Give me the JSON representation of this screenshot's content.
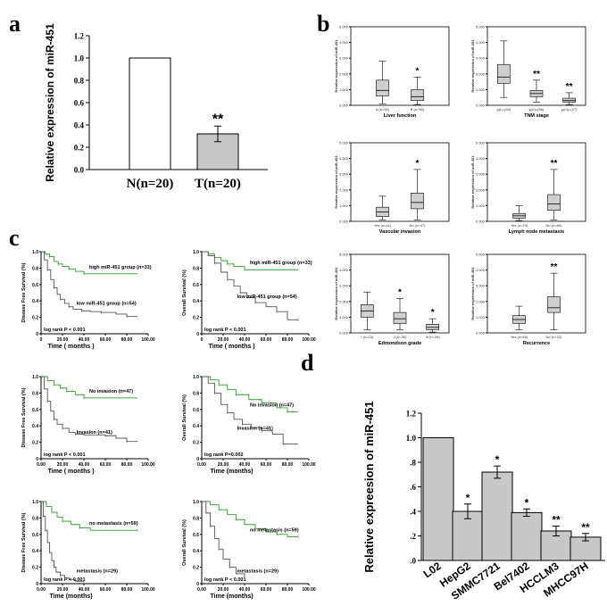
{
  "panel_labels": {
    "a": "a",
    "b": "b",
    "c": "c",
    "d": "d"
  },
  "chart_data": [
    {
      "id": "a",
      "type": "bar",
      "categories": [
        "N(n=20)",
        "T(n=20)"
      ],
      "values": [
        1.0,
        0.32
      ],
      "errors": [
        0,
        0.07
      ],
      "annotations": [
        "",
        "**"
      ],
      "ylabel": "Relative expression of miR-451",
      "ylim": [
        0,
        1.2
      ],
      "yticks": [
        "0.0",
        "0.2",
        "0.4",
        "0.6",
        "0.8",
        "1.0",
        "1.2"
      ],
      "colors": [
        "#ffffff",
        "#c8c8c8"
      ]
    },
    {
      "id": "b",
      "type": "box",
      "ylabel": "Relative expression of miR-451",
      "ylim": [
        0,
        5
      ],
      "yticks": [
        "0.000",
        "1.000",
        "2.000",
        "3.000",
        "4.000",
        "5.000"
      ],
      "subplots": [
        {
          "xlabel": "Liver function",
          "groups": [
            "A (n=68)",
            "B (n=50)"
          ],
          "boxes": [
            [
              0.1,
              0.6,
              0.95,
              1.6,
              2.8
            ],
            [
              0.05,
              0.3,
              0.55,
              1.0,
              1.8
            ]
          ],
          "marks": [
            "",
            "*"
          ]
        },
        {
          "xlabel": "TNM stage",
          "groups": [
            "p(I)=(35)",
            "p(II)=(56)",
            "p(III)=(27)"
          ],
          "boxes": [
            [
              0.5,
              1.4,
              1.8,
              2.6,
              4.1
            ],
            [
              0.2,
              0.55,
              0.75,
              0.95,
              1.6
            ],
            [
              0.05,
              0.2,
              0.3,
              0.45,
              0.8
            ]
          ],
          "marks": [
            "",
            "**",
            "**"
          ]
        },
        {
          "xlabel": "Vascular invasion",
          "groups": [
            "Yes (n=41)",
            "No (n=47)"
          ],
          "boxes": [
            [
              0.1,
              0.3,
              0.6,
              0.9,
              1.6
            ],
            [
              0.1,
              0.8,
              1.2,
              1.8,
              3.3
            ]
          ],
          "marks": [
            "",
            "*"
          ]
        },
        {
          "xlabel": "Lymph node metastasis",
          "groups": [
            "Yes (n=29)",
            "No (n=60)"
          ],
          "boxes": [
            [
              0.05,
              0.2,
              0.35,
              0.5,
              1.0
            ],
            [
              0.1,
              0.7,
              1.1,
              1.7,
              3.3
            ]
          ],
          "marks": [
            "",
            "**"
          ]
        },
        {
          "xlabel": "Edmondson grade",
          "groups": [
            "I (n=23)",
            "II (n=39)",
            "III (n=26)"
          ],
          "boxes": [
            [
              0.2,
              1.0,
              1.4,
              1.8,
              2.6
            ],
            [
              0.2,
              0.6,
              0.9,
              1.3,
              2.2
            ],
            [
              0.05,
              0.2,
              0.35,
              0.55,
              0.9
            ]
          ],
          "marks": [
            "",
            "*",
            "*"
          ]
        },
        {
          "xlabel": "Recurrence",
          "groups": [
            "Yes (n=46)",
            "No (n=32)"
          ],
          "boxes": [
            [
              0.2,
              0.6,
              0.85,
              1.1,
              1.7
            ],
            [
              0.2,
              1.3,
              1.6,
              2.3,
              3.8
            ]
          ],
          "marks": [
            "",
            "**"
          ]
        }
      ]
    },
    {
      "id": "c",
      "type": "line",
      "ylim": [
        0,
        1.0
      ],
      "yticks": [
        "0",
        "0.2",
        "0.4",
        "0.6",
        "0.8",
        "1.0"
      ],
      "xticks_int": [
        "0",
        "20.00",
        "40.00",
        "60.00",
        "80.00",
        "100.00"
      ],
      "xticks_dec": [
        "0.00",
        "20.00",
        "40.00",
        "60.00",
        "80.00",
        "100.00"
      ],
      "subplots": [
        {
          "ylabel": "Disease Free Survival (%)",
          "xlabel": "Time ( months )",
          "pvalue": "log rank P < 0.001",
          "series": [
            {
              "name": "high miR-451 group (n=33)",
              "color": "#2f9d2f",
              "x": [
                0,
                4,
                8,
                12,
                16,
                20,
                26,
                32,
                40,
                90
              ],
              "y": [
                1,
                0.97,
                0.94,
                0.88,
                0.85,
                0.82,
                0.79,
                0.76,
                0.73,
                0.73
              ]
            },
            {
              "name": "low miR-451 group (n=54)",
              "color": "#555555",
              "x": [
                0,
                3,
                6,
                9,
                12,
                15,
                18,
                22,
                26,
                30,
                38,
                46,
                56,
                70,
                80,
                90
              ],
              "y": [
                1,
                0.9,
                0.78,
                0.66,
                0.56,
                0.48,
                0.42,
                0.37,
                0.33,
                0.3,
                0.28,
                0.27,
                0.26,
                0.24,
                0.21,
                0.21
              ]
            }
          ]
        },
        {
          "ylabel": "Overall Survival (%)",
          "xlabel": "Time ( months )",
          "pvalue": "log rank P < 0.001",
          "series": [
            {
              "name": "high miR-451 group (n=33)",
              "color": "#2f9d2f",
              "x": [
                0,
                6,
                12,
                18,
                24,
                30,
                40,
                90
              ],
              "y": [
                1,
                0.97,
                0.93,
                0.89,
                0.85,
                0.82,
                0.78,
                0.78
              ]
            },
            {
              "name": "low miR-451 group (n=54)",
              "color": "#555555",
              "x": [
                0,
                6,
                12,
                18,
                24,
                30,
                36,
                42,
                50,
                60,
                70,
                80,
                90
              ],
              "y": [
                1,
                0.95,
                0.86,
                0.75,
                0.66,
                0.58,
                0.5,
                0.44,
                0.38,
                0.33,
                0.27,
                0.17,
                0.17
              ]
            }
          ]
        },
        {
          "ylabel": "Disease Free Survival (%)",
          "xlabel": "Time ( months )",
          "pvalue": "log rank P < 0.001",
          "series": [
            {
              "name": "No invasion (n=47)",
              "color": "#2f9d2f",
              "x": [
                0,
                6,
                12,
                18,
                24,
                32,
                40,
                90
              ],
              "y": [
                1,
                0.95,
                0.9,
                0.86,
                0.82,
                0.78,
                0.74,
                0.74
              ]
            },
            {
              "name": "Invasion (n=41)",
              "color": "#555555",
              "x": [
                0,
                3,
                6,
                9,
                12,
                15,
                20,
                26,
                32,
                40,
                60,
                70,
                80,
                90
              ],
              "y": [
                1,
                0.85,
                0.7,
                0.58,
                0.48,
                0.42,
                0.37,
                0.32,
                0.3,
                0.29,
                0.28,
                0.25,
                0.21,
                0.21
              ]
            }
          ]
        },
        {
          "ylabel": "Overall Survival (%)",
          "xlabel": "Time (months)",
          "pvalue": "log rank P=0.002",
          "series": [
            {
              "name": "No invasion (n=47)",
              "color": "#2f9d2f",
              "x": [
                0,
                8,
                16,
                24,
                32,
                44,
                56,
                70,
                80,
                90
              ],
              "y": [
                1,
                0.96,
                0.9,
                0.84,
                0.78,
                0.72,
                0.68,
                0.62,
                0.57,
                0.57
              ]
            },
            {
              "name": "Invasion (n=41)",
              "color": "#555555",
              "x": [
                0,
                6,
                12,
                18,
                24,
                30,
                38,
                46,
                56,
                66,
                76,
                90
              ],
              "y": [
                1,
                0.92,
                0.8,
                0.66,
                0.56,
                0.48,
                0.42,
                0.38,
                0.34,
                0.3,
                0.18,
                0.18
              ]
            }
          ]
        },
        {
          "ylabel": "Disease Free Survival (%)",
          "xlabel": "Time (months)",
          "pvalue": "log rank P < 0.001",
          "series": [
            {
              "name": "no metastasis (n=59)",
              "color": "#2f9d2f",
              "x": [
                0,
                5,
                10,
                15,
                20,
                28,
                36,
                46,
                90
              ],
              "y": [
                1,
                0.94,
                0.87,
                0.81,
                0.76,
                0.72,
                0.68,
                0.65,
                0.65
              ]
            },
            {
              "name": "metastasis (n=29)",
              "color": "#555555",
              "x": [
                0,
                2,
                4,
                6,
                8,
                10,
                12,
                14,
                18,
                22,
                26,
                32,
                40
              ],
              "y": [
                1,
                0.82,
                0.65,
                0.5,
                0.38,
                0.28,
                0.2,
                0.14,
                0.1,
                0.07,
                0.05,
                0.03,
                0.03
              ]
            }
          ]
        },
        {
          "ylabel": "Overall Survival (%)",
          "xlabel": "Time (months)",
          "pvalue": "log rank P < 0.001",
          "series": [
            {
              "name": "no metastasis (n=59)",
              "color": "#2f9d2f",
              "x": [
                0,
                8,
                16,
                24,
                32,
                40,
                50,
                60,
                70,
                80,
                90
              ],
              "y": [
                1,
                0.96,
                0.9,
                0.84,
                0.78,
                0.72,
                0.67,
                0.63,
                0.6,
                0.57,
                0.57
              ]
            },
            {
              "name": "metastasis (n=29)",
              "color": "#555555",
              "x": [
                0,
                4,
                8,
                12,
                16,
                20,
                26,
                32,
                40
              ],
              "y": [
                1,
                0.86,
                0.7,
                0.55,
                0.42,
                0.3,
                0.2,
                0.12,
                0.08
              ]
            }
          ]
        }
      ]
    },
    {
      "id": "d",
      "type": "bar",
      "categories": [
        "L02",
        "HepG2",
        "SMMC7721",
        "Bel7402",
        "HCCLM3",
        "MHCC97H"
      ],
      "values": [
        1.0,
        0.4,
        0.72,
        0.39,
        0.24,
        0.19
      ],
      "errors": [
        0,
        0.06,
        0.05,
        0.03,
        0.04,
        0.03
      ],
      "annotations": [
        "",
        "*",
        "*",
        "*",
        "**",
        "**"
      ],
      "ylabel": "Relative expreesion of miR-451",
      "ylim": [
        0,
        1.2
      ],
      "yticks": [
        ".0",
        ".2",
        ".4",
        ".6",
        ".8",
        "1.0",
        "1.2"
      ],
      "color": "#c8c8c8"
    }
  ]
}
